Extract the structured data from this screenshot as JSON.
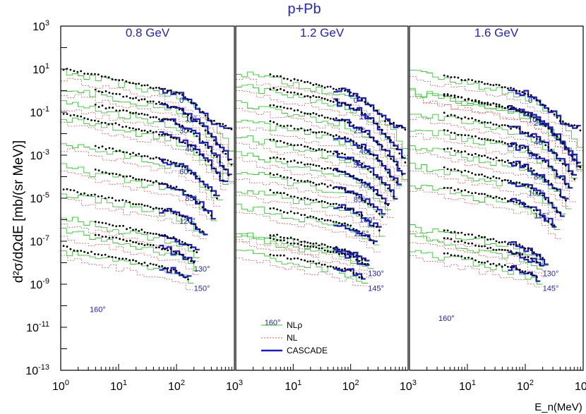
{
  "chart_data": {
    "type": "line",
    "title": "p+Pb",
    "ylabel": "d²σ/dΩdE [mb/(sr MeV)]",
    "xlabel": "E_n(MeV)",
    "xscale": "log",
    "yscale": "log",
    "xlim": [
      1,
      1000
    ],
    "ylim": [
      1e-13,
      1000
    ],
    "x_ticks": [
      {
        "base": "10",
        "exp": "0"
      },
      {
        "base": "10",
        "exp": "1"
      },
      {
        "base": "10",
        "exp": "2"
      },
      {
        "base": "10",
        "exp": "3"
      }
    ],
    "y_ticks": [
      {
        "base": "10",
        "exp": "3"
      },
      {
        "base": "10",
        "exp": "1"
      },
      {
        "base": "10",
        "exp": "-1"
      },
      {
        "base": "10",
        "exp": "-3"
      },
      {
        "base": "10",
        "exp": "-5"
      },
      {
        "base": "10",
        "exp": "-7"
      },
      {
        "base": "10",
        "exp": "-9"
      },
      {
        "base": "10",
        "exp": "-11"
      },
      {
        "base": "10",
        "exp": "-13"
      }
    ],
    "legend": [
      {
        "label": "NLρ",
        "color": "#33cc33",
        "style": "solid-thin"
      },
      {
        "label": "NL",
        "color": "#e05050",
        "style": "dotted"
      },
      {
        "label": "CASCADE",
        "color": "#1a1acc",
        "style": "solid-thick"
      }
    ],
    "colors": {
      "label": "#2222cc",
      "nlrho": "#33cc33",
      "nl": "#e05050",
      "cascade": "#1a1acc",
      "data": "#000000"
    },
    "panels": [
      {
        "energy": "0.8 GeV",
        "angles": [
          {
            "label": "0°",
            "level": 1.0
          },
          {
            "label": "10°",
            "level": 0.3
          },
          {
            "label": "30°",
            "level": -0.4
          },
          {
            "label": "40°",
            "level": -1.1
          },
          {
            "label": "60°",
            "level": -2.3
          },
          {
            "label": "85°",
            "level": -3.4
          },
          {
            "label": "120°",
            "level": -4.6
          },
          {
            "label": "160°",
            "level": -5.8
          },
          {
            "label": "130°",
            "level": -6.4
          },
          {
            "label": "150°",
            "level": -7.3
          }
        ]
      },
      {
        "energy": "1.2 GeV",
        "angles": [
          {
            "label": "0°",
            "level": 1.0
          },
          {
            "label": "10°",
            "level": 0.4
          },
          {
            "label": "25°",
            "level": -0.4
          },
          {
            "label": "40°",
            "level": -1.2
          },
          {
            "label": "55°",
            "level": -2.0
          },
          {
            "label": "70°",
            "level": -2.8
          },
          {
            "label": "85°",
            "level": -3.6
          },
          {
            "label": "100°",
            "level": -4.4
          },
          {
            "label": "115°",
            "level": -5.2
          },
          {
            "label": "160°",
            "level": -6.4
          },
          {
            "label": "130°",
            "level": -6.6
          },
          {
            "label": "145°",
            "level": -7.3
          }
        ]
      },
      {
        "energy": "1.6 GeV",
        "angles": [
          {
            "label": "0°",
            "level": 1.0
          },
          {
            "label": "25°",
            "level": 0.1
          },
          {
            "label": "10°",
            "level": 0.1
          },
          {
            "label": "40°",
            "level": -0.8
          },
          {
            "label": "55°",
            "level": -1.6
          },
          {
            "label": "85°",
            "level": -2.4
          },
          {
            "label": "100°",
            "level": -3.3
          },
          {
            "label": "115°",
            "level": -4.2
          },
          {
            "label": "160°",
            "level": -6.2
          },
          {
            "label": "130°",
            "level": -6.6
          },
          {
            "label": "145°",
            "level": -7.3
          }
        ]
      }
    ]
  }
}
